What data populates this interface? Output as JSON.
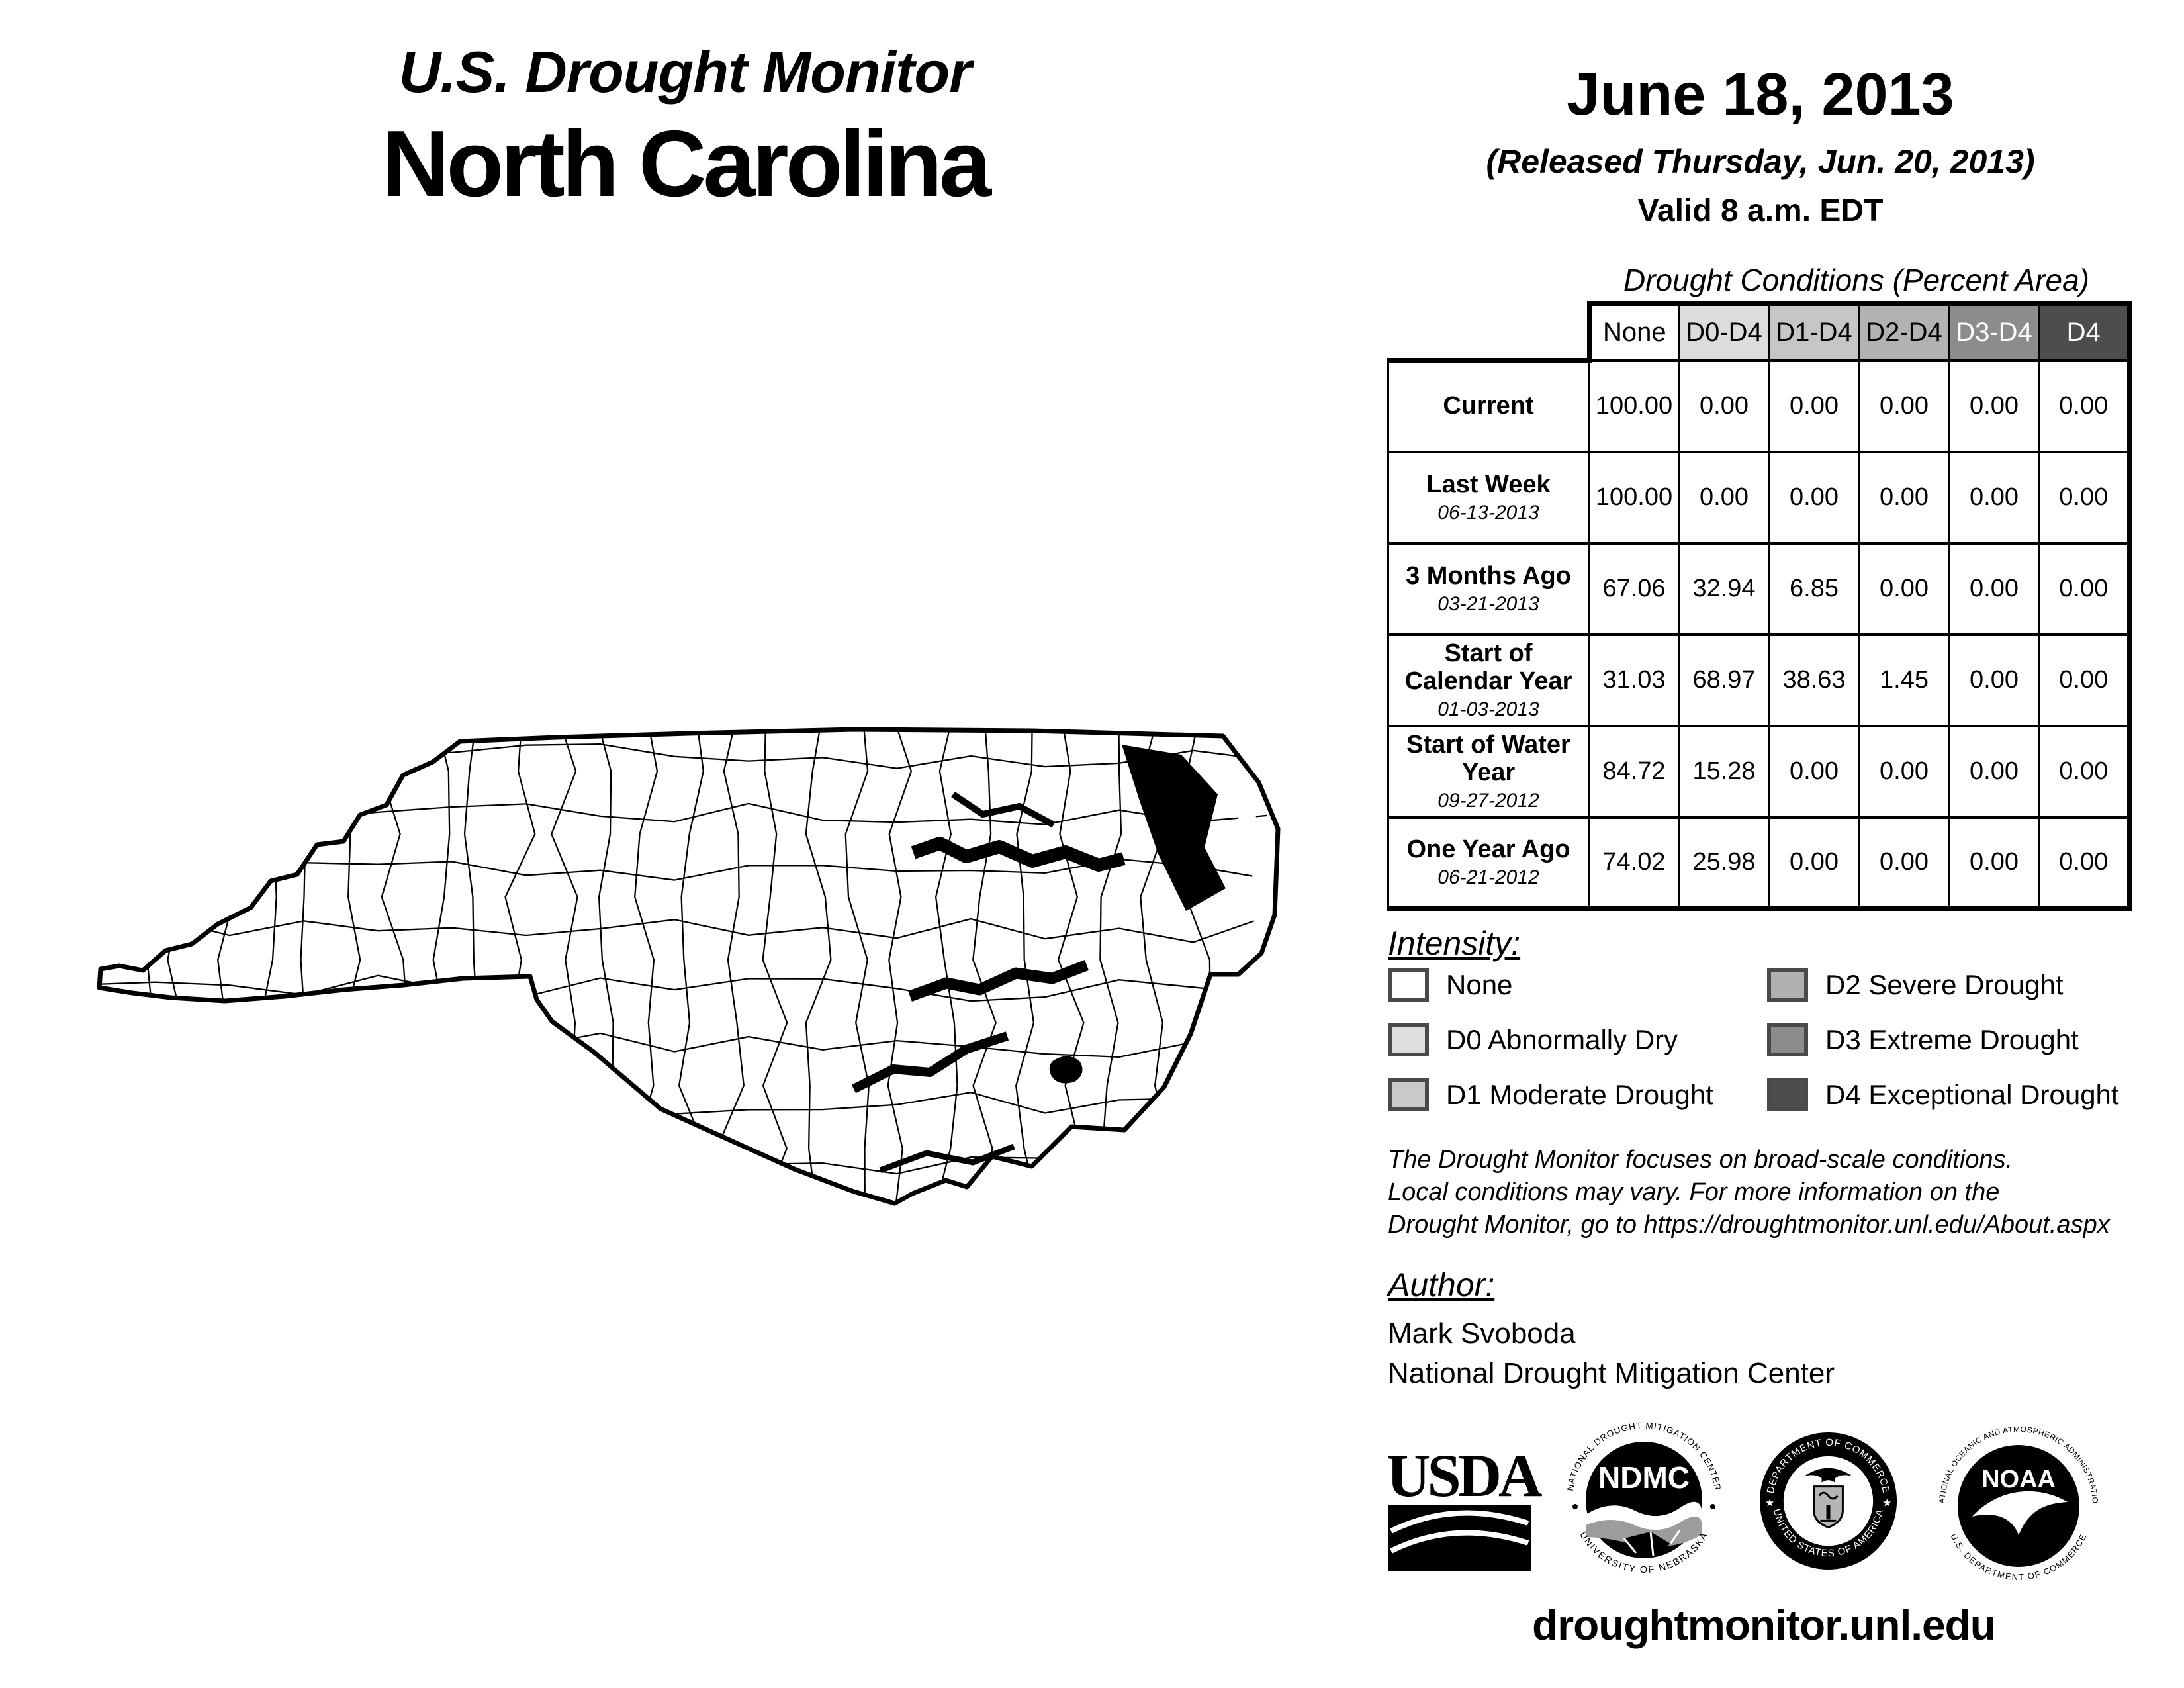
{
  "page": {
    "title_line1": "U.S. Drought Monitor",
    "title_line2": "North Carolina",
    "date": "June 18, 2013",
    "released": "(Released Thursday, Jun. 20, 2013)",
    "valid": "Valid 8 a.m. EDT",
    "footer_url": "droughtmonitor.unl.edu"
  },
  "table": {
    "title": "Drought Conditions (Percent Area)",
    "columns": [
      "None",
      "D0-D4",
      "D1-D4",
      "D2-D4",
      "D3-D4",
      "D4"
    ],
    "header_colors": [
      "#ffffff",
      "#dcdcdc",
      "#c6c6c6",
      "#b2b2b2",
      "#8c8c8c",
      "#4d4d4d"
    ],
    "header_text_colors": [
      "#000000",
      "#000000",
      "#000000",
      "#000000",
      "#ffffff",
      "#ffffff"
    ],
    "rows": [
      {
        "label": "Current",
        "date": "",
        "values": [
          "100.00",
          "0.00",
          "0.00",
          "0.00",
          "0.00",
          "0.00"
        ]
      },
      {
        "label": "Last Week",
        "date": "06-13-2013",
        "values": [
          "100.00",
          "0.00",
          "0.00",
          "0.00",
          "0.00",
          "0.00"
        ]
      },
      {
        "label": "3 Months Ago",
        "date": "03-21-2013",
        "values": [
          "67.06",
          "32.94",
          "6.85",
          "0.00",
          "0.00",
          "0.00"
        ]
      },
      {
        "label": "Start of Calendar Year",
        "date": "01-03-2013",
        "values": [
          "31.03",
          "68.97",
          "38.63",
          "1.45",
          "0.00",
          "0.00"
        ]
      },
      {
        "label": "Start of Water Year",
        "date": "09-27-2012",
        "values": [
          "84.72",
          "15.28",
          "0.00",
          "0.00",
          "0.00",
          "0.00"
        ]
      },
      {
        "label": "One Year Ago",
        "date": "06-21-2012",
        "values": [
          "74.02",
          "25.98",
          "0.00",
          "0.00",
          "0.00",
          "0.00"
        ]
      }
    ]
  },
  "legend": {
    "title": "Intensity:",
    "items": [
      {
        "label": "None",
        "color": "#ffffff"
      },
      {
        "label": "D0 Abnormally Dry",
        "color": "#dedede"
      },
      {
        "label": "D1 Moderate Drought",
        "color": "#c9c9c9"
      },
      {
        "label": "D2 Severe Drought",
        "color": "#b0b0b0"
      },
      {
        "label": "D3 Extreme Drought",
        "color": "#8c8c8c"
      },
      {
        "label": "D4 Exceptional Drought",
        "color": "#4d4d4d"
      }
    ]
  },
  "disclaimer": {
    "lines": [
      "The Drought Monitor focuses on broad-scale conditions.",
      "Local conditions may vary. For more information on the",
      "Drought Monitor, go to https://droughtmonitor.unl.edu/About.aspx"
    ]
  },
  "author": {
    "title": "Author:",
    "name": "Mark Svoboda",
    "org": "National Drought Mitigation Center"
  },
  "logos": {
    "usda": "USDA",
    "ndmc_top": "NATIONAL DROUGHT MITIGATION CENTER",
    "ndmc_center": "NDMC",
    "ndmc_bottom": "UNIVERSITY OF NEBRASKA",
    "doc_top": "DEPARTMENT OF COMMERCE",
    "doc_bottom": "UNITED STATES OF AMERICA",
    "noaa_top": "NATIONAL OCEANIC AND ATMOSPHERIC ADMINISTRATION",
    "noaa_center": "NOAA",
    "noaa_bottom": "U.S. DEPARTMENT OF COMMERCE"
  }
}
